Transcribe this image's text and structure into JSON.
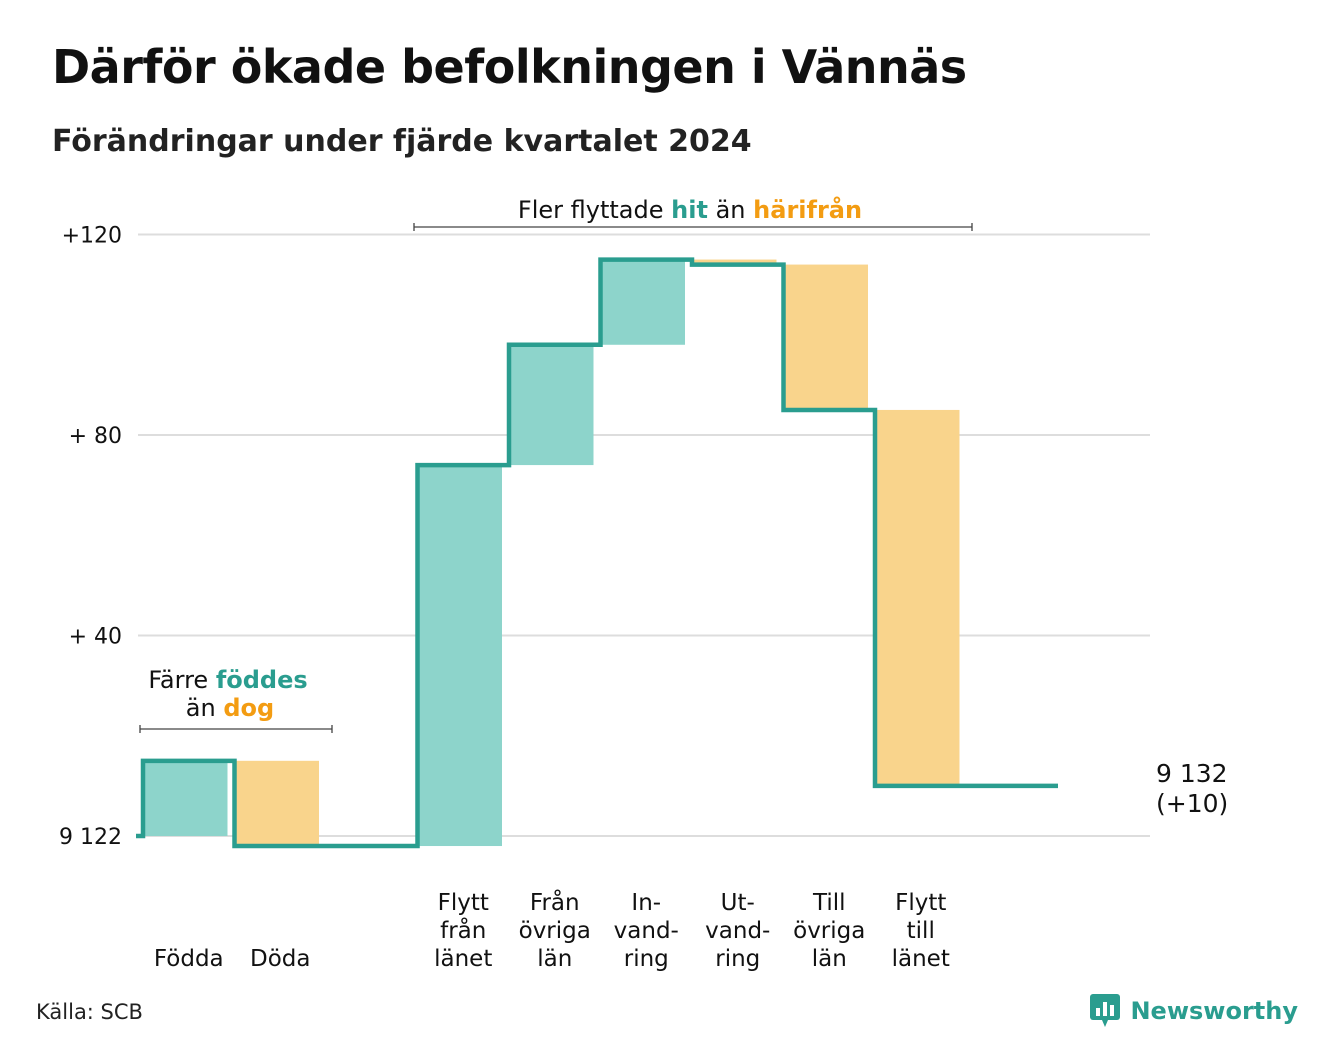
{
  "title": "Därför ökade befolkningen i Vännäs",
  "subtitle": "Förändringar under fjärde kvartalet 2024",
  "source": "Källa: SCB",
  "brand": {
    "name": "Newsworthy",
    "icon": "newsworthy-logo-icon"
  },
  "colors": {
    "increase": "#2a9d8f",
    "increase_fill": "#8dd4cb",
    "decrease_fill": "#f9d48c",
    "decrease_text": "#f39c12",
    "grid": "#dddddd"
  },
  "annotations": {
    "births": {
      "line1": "Färre",
      "line1_highlight": "föddes",
      "line2": "än",
      "line2_highlight": "dog"
    },
    "migration": {
      "prefix": "Fler flyttade",
      "highlight_in": "hit",
      "middle": "än",
      "highlight_out": "härifrån"
    }
  },
  "end_label": {
    "value": "9 132",
    "change": "(+10)"
  },
  "chart_data": {
    "type": "waterfall",
    "base_value": 9122,
    "y_ticks": [
      {
        "value": 0,
        "label": "9 122"
      },
      {
        "value": 40,
        "label": "+ 40"
      },
      {
        "value": 80,
        "label": "+ 80"
      },
      {
        "value": 120,
        "label": "+120"
      }
    ],
    "ylim": [
      -6,
      127
    ],
    "grid": true,
    "categories": [
      {
        "label": [
          "Födda"
        ],
        "change": 15,
        "group": "births"
      },
      {
        "label": [
          "Döda"
        ],
        "change": -17,
        "group": "births"
      },
      {
        "label": [],
        "change": 0,
        "group": "gap"
      },
      {
        "label": [
          "Flytt",
          "från",
          "länet"
        ],
        "change": 76,
        "group": "migration"
      },
      {
        "label": [
          "Från",
          "övriga",
          "län"
        ],
        "change": 24,
        "group": "migration"
      },
      {
        "label": [
          "In-",
          "vand-",
          "ring"
        ],
        "change": 17,
        "group": "migration"
      },
      {
        "label": [
          "Ut-",
          "vand-",
          "ring"
        ],
        "change": -1,
        "group": "migration"
      },
      {
        "label": [
          "Till",
          "övriga",
          "län"
        ],
        "change": -29,
        "group": "migration"
      },
      {
        "label": [
          "Flytt",
          "till",
          "länet"
        ],
        "change": -75,
        "group": "migration"
      },
      {
        "label": [],
        "change": 0,
        "group": "end"
      }
    ],
    "end_change": 10
  }
}
